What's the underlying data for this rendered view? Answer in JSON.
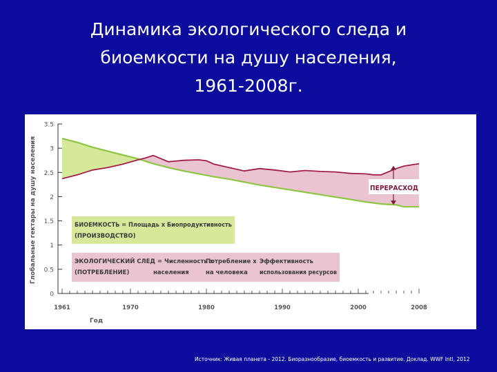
{
  "slide": {
    "title_lines": [
      "Динамика экологического следа и",
      "биоемкости на душу населения,",
      "1961-2008г."
    ],
    "source": "Источник: Живая планета - 2012. Биоразнообразие, биоемкость и развитие. Доклад. WWF Intl, 2012"
  },
  "chart_data": {
    "type": "area",
    "xlabel": "Год",
    "ylabel": "Глобальные гектары на душу населения",
    "xlim": [
      1961,
      2008
    ],
    "ylim": [
      0,
      3.5
    ],
    "x_ticks": [
      1961,
      1970,
      1980,
      1990,
      2000,
      2008
    ],
    "y_ticks": [
      0,
      0.5,
      1,
      1.5,
      2,
      2.5,
      3,
      3.5
    ],
    "y_tick_labels": [
      "0",
      "0.5",
      "1",
      "1.5",
      "2",
      "2.5",
      "3",
      "3.5"
    ],
    "x_tick_labels": [
      "1961",
      "1970",
      "1980",
      "1990",
      "2000",
      "2008"
    ],
    "grid": "none",
    "series": [
      {
        "key": "biocapacity",
        "color": "#8cc63f",
        "x": [
          1961,
          1963,
          1965,
          1967,
          1969,
          1971,
          1973,
          1975,
          1977,
          1979,
          1981,
          1983,
          1985,
          1987,
          1989,
          1991,
          1993,
          1995,
          1997,
          1999,
          2001,
          2003,
          2005,
          2006,
          2008
        ],
        "y": [
          3.2,
          3.12,
          3.02,
          2.94,
          2.86,
          2.78,
          2.68,
          2.6,
          2.53,
          2.47,
          2.41,
          2.36,
          2.3,
          2.24,
          2.19,
          2.14,
          2.09,
          2.04,
          1.99,
          1.94,
          1.89,
          1.85,
          1.83,
          1.79,
          1.79
        ]
      },
      {
        "key": "footprint",
        "color": "#a11d4a",
        "x": [
          1961,
          1963,
          1965,
          1967,
          1969,
          1971,
          1972,
          1973,
          1975,
          1977,
          1979,
          1980,
          1981,
          1983,
          1985,
          1987,
          1989,
          1991,
          1993,
          1995,
          1997,
          1999,
          2001,
          2002,
          2003,
          2005,
          2006,
          2008
        ],
        "y": [
          2.37,
          2.45,
          2.55,
          2.6,
          2.67,
          2.76,
          2.8,
          2.85,
          2.72,
          2.75,
          2.76,
          2.74,
          2.67,
          2.6,
          2.53,
          2.58,
          2.55,
          2.51,
          2.54,
          2.52,
          2.51,
          2.48,
          2.47,
          2.45,
          2.45,
          2.58,
          2.63,
          2.68
        ]
      }
    ],
    "annotations": {
      "overshoot": "ПЕРЕРАСХОД",
      "biocapacity_box": {
        "line1": "БИОЕМКОСТЬ = Площадь х Биопродуктивность",
        "line2": "(ПРОИЗВОДСТВО)",
        "color": "#d6e89a"
      },
      "footprint_box": {
        "line1_parts": [
          "ЭКОЛОГИЧЕСКИЙ СЛЕД = Численность х",
          "Потребление х",
          "Эффективность"
        ],
        "line2_parts": [
          "(ПОТРЕБЛЕНИЕ)",
          "населения",
          "на человека",
          "использования ресурсов"
        ],
        "color": "#eac4d0"
      }
    },
    "fills": {
      "deficit": "#eac4d0",
      "reserve": "#d6e89a"
    }
  }
}
